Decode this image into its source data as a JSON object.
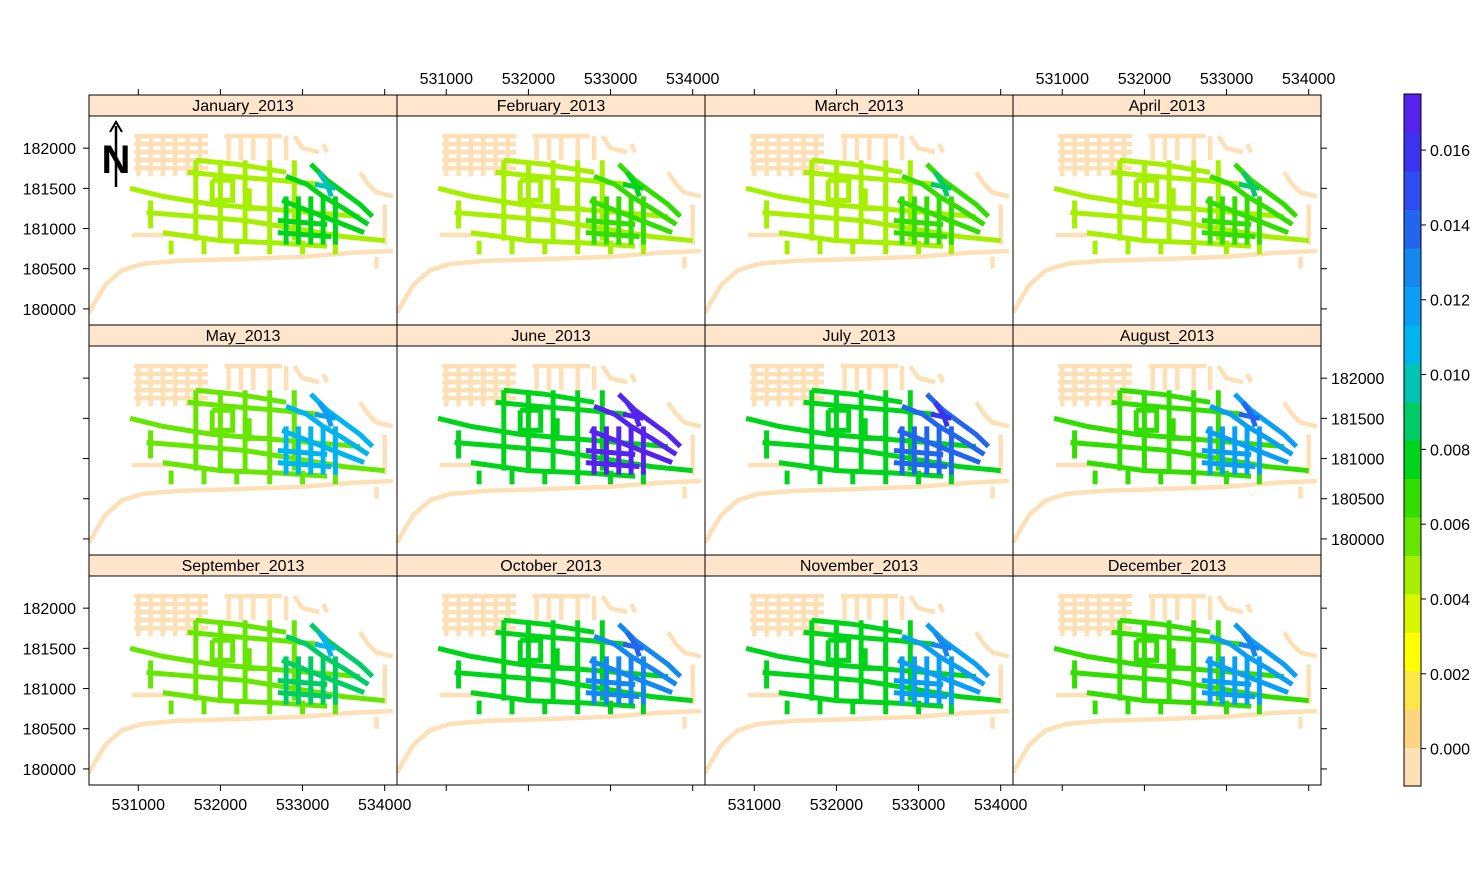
{
  "chart_data": {
    "type": "heatmap",
    "panels": [
      "January_2013",
      "February_2013",
      "March_2013",
      "April_2013",
      "May_2013",
      "June_2013",
      "July_2013",
      "August_2013",
      "September_2013",
      "October_2013",
      "November_2013",
      "December_2013"
    ],
    "layout": {
      "columns": 4,
      "rows": 3
    },
    "x_ticks": [
      531000,
      532000,
      533000,
      534000
    ],
    "y_ticks": [
      180000,
      180500,
      181000,
      181500,
      182000
    ],
    "xlim": [
      530400,
      534150
    ],
    "ylim": [
      179800,
      182400
    ],
    "colorbar": {
      "ticks": [
        0.0,
        0.002,
        0.004,
        0.006,
        0.008,
        0.01,
        0.012,
        0.014,
        0.016
      ],
      "tick_labels": [
        "0.000",
        "0.002",
        "0.004",
        "0.006",
        "0.008",
        "0.010",
        "0.012",
        "0.014",
        "0.016"
      ],
      "range": [
        -0.001,
        0.0175
      ],
      "colors": [
        "#fde0b6",
        "#fdd480",
        "#fde54a",
        "#ffff00",
        "#d9f500",
        "#a6ef00",
        "#66e600",
        "#33dd00",
        "#00d41a",
        "#00cc66",
        "#00c3b3",
        "#00b4f0",
        "#0a9ff5",
        "#1587f0",
        "#2266f0",
        "#2e4cf0",
        "#3a33ef",
        "#5424ee"
      ]
    },
    "panel_levels": [
      {
        "hot": 0.008,
        "ring": 0.005
      },
      {
        "hot": 0.0065,
        "ring": 0.0042
      },
      {
        "hot": 0.007,
        "ring": 0.0045
      },
      {
        "hot": 0.0068,
        "ring": 0.0045
      },
      {
        "hot": 0.0105,
        "ring": 0.006
      },
      {
        "hot": 0.0165,
        "ring": 0.008
      },
      {
        "hot": 0.014,
        "ring": 0.008
      },
      {
        "hot": 0.012,
        "ring": 0.007
      },
      {
        "hot": 0.009,
        "ring": 0.006
      },
      {
        "hot": 0.0125,
        "ring": 0.0075
      },
      {
        "hot": 0.0115,
        "ring": 0.0075
      },
      {
        "hot": 0.0115,
        "ring": 0.007
      }
    ],
    "north_arrow": "N"
  }
}
